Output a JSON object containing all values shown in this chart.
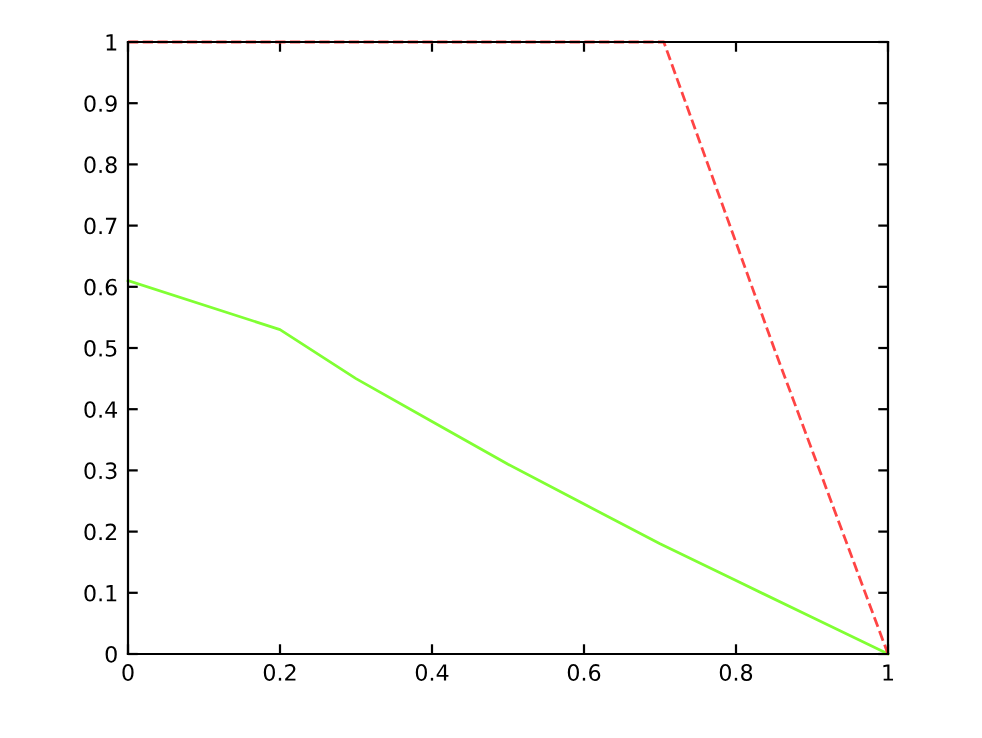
{
  "chart_data": {
    "type": "line",
    "xlim": [
      0,
      1
    ],
    "ylim": [
      0,
      1
    ],
    "xticks": [
      0,
      0.2,
      0.4,
      0.6,
      0.8,
      1
    ],
    "yticks": [
      0,
      0.1,
      0.2,
      0.3,
      0.4,
      0.5,
      0.6,
      0.7,
      0.8,
      0.9,
      1
    ],
    "grid": false,
    "legend": false,
    "marker": "none",
    "series": [
      {
        "color": "#80ff33",
        "line_style": "solid",
        "x": [
          0,
          0.2,
          0.3,
          0.4,
          0.5,
          0.6,
          0.7,
          0.8,
          0.9,
          1
        ],
        "values": [
          0.61,
          0.53,
          0.45,
          0.38,
          0.31,
          0.245,
          0.18,
          0.12,
          0.06,
          0
        ]
      },
      {
        "color": "#ff4444",
        "line_style": "dashed",
        "x": [
          0,
          0.705,
          0.85,
          1
        ],
        "values": [
          1,
          1,
          0.5,
          0
        ]
      }
    ]
  }
}
